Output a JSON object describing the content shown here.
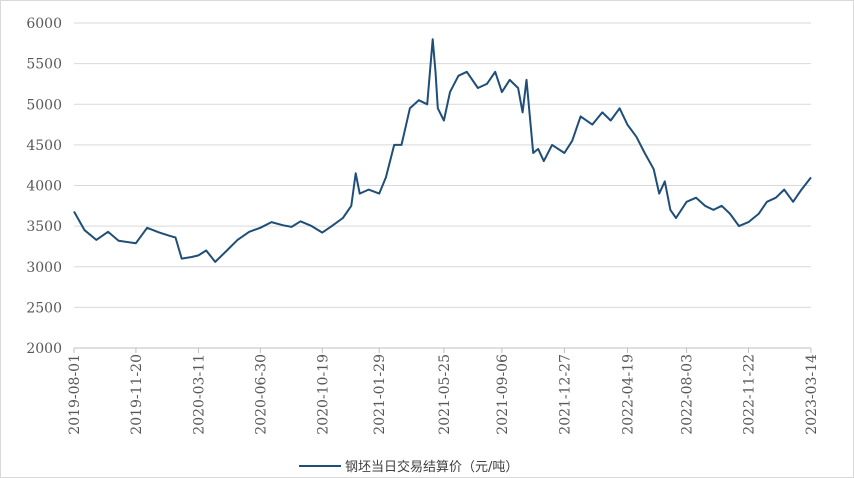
{
  "chart_data": {
    "type": "line",
    "title": "",
    "xlabel": "",
    "ylabel": "",
    "ylim": [
      2000,
      6000
    ],
    "y_ticks": [
      2000,
      2500,
      3000,
      3500,
      4000,
      4500,
      5000,
      5500,
      6000
    ],
    "x_ticks": [
      "2019-08-01",
      "2019-11-20",
      "2020-03-11",
      "2020-06-30",
      "2020-10-19",
      "2021-01-29",
      "2021-05-25",
      "2021-09-06",
      "2021-12-27",
      "2022-04-19",
      "2022-08-03",
      "2022-11-22",
      "2023-03-14"
    ],
    "grid": "horizontal",
    "legend_position": "bottom",
    "color": "#1f4e79",
    "series": [
      {
        "name": "钢坯当日交易结算价（元/吨）",
        "x": [
          "2019-08-01",
          "2019-08-20",
          "2019-09-10",
          "2019-10-01",
          "2019-10-20",
          "2019-11-20",
          "2019-12-10",
          "2020-01-01",
          "2020-01-20",
          "2020-01-30",
          "2020-02-10",
          "2020-02-28",
          "2020-03-11",
          "2020-03-25",
          "2020-04-10",
          "2020-05-01",
          "2020-05-20",
          "2020-06-10",
          "2020-06-30",
          "2020-07-20",
          "2020-08-10",
          "2020-08-25",
          "2020-09-10",
          "2020-09-30",
          "2020-10-19",
          "2020-11-05",
          "2020-11-25",
          "2020-12-10",
          "2020-12-18",
          "2020-12-25",
          "2021-01-10",
          "2021-01-29",
          "2021-02-10",
          "2021-02-25",
          "2021-03-10",
          "2021-03-25",
          "2021-04-10",
          "2021-04-25",
          "2021-05-05",
          "2021-05-10",
          "2021-05-14",
          "2021-05-25",
          "2021-06-05",
          "2021-06-20",
          "2021-07-05",
          "2021-07-25",
          "2021-08-10",
          "2021-08-25",
          "2021-09-06",
          "2021-09-20",
          "2021-10-05",
          "2021-10-13",
          "2021-10-20",
          "2021-11-01",
          "2021-11-10",
          "2021-11-20",
          "2021-12-05",
          "2021-12-27",
          "2022-01-10",
          "2022-01-25",
          "2022-02-15",
          "2022-03-05",
          "2022-03-20",
          "2022-04-05",
          "2022-04-19",
          "2022-05-05",
          "2022-05-20",
          "2022-06-05",
          "2022-06-15",
          "2022-06-25",
          "2022-07-05",
          "2022-07-15",
          "2022-08-03",
          "2022-08-20",
          "2022-09-05",
          "2022-09-20",
          "2022-10-05",
          "2022-10-20",
          "2022-11-05",
          "2022-11-22",
          "2022-12-10",
          "2022-12-25",
          "2023-01-10",
          "2023-01-25",
          "2023-02-10",
          "2023-02-25",
          "2023-03-14"
        ],
        "values": [
          3680,
          3450,
          3330,
          3430,
          3320,
          3290,
          3480,
          3420,
          3380,
          3360,
          3100,
          3120,
          3140,
          3200,
          3060,
          3200,
          3330,
          3430,
          3480,
          3550,
          3510,
          3490,
          3560,
          3500,
          3420,
          3500,
          3600,
          3750,
          4150,
          3900,
          3950,
          3900,
          4100,
          4500,
          4500,
          4950,
          5050,
          5000,
          5800,
          5400,
          4950,
          4800,
          5150,
          5350,
          5400,
          5200,
          5250,
          5400,
          5150,
          5300,
          5200,
          4900,
          5300,
          4400,
          4450,
          4300,
          4500,
          4400,
          4550,
          4850,
          4750,
          4900,
          4800,
          4950,
          4750,
          4600,
          4400,
          4200,
          3900,
          4050,
          3700,
          3600,
          3800,
          3850,
          3750,
          3700,
          3750,
          3650,
          3500,
          3550,
          3650,
          3800,
          3850,
          3950,
          3800,
          3950,
          4100
        ]
      }
    ]
  }
}
